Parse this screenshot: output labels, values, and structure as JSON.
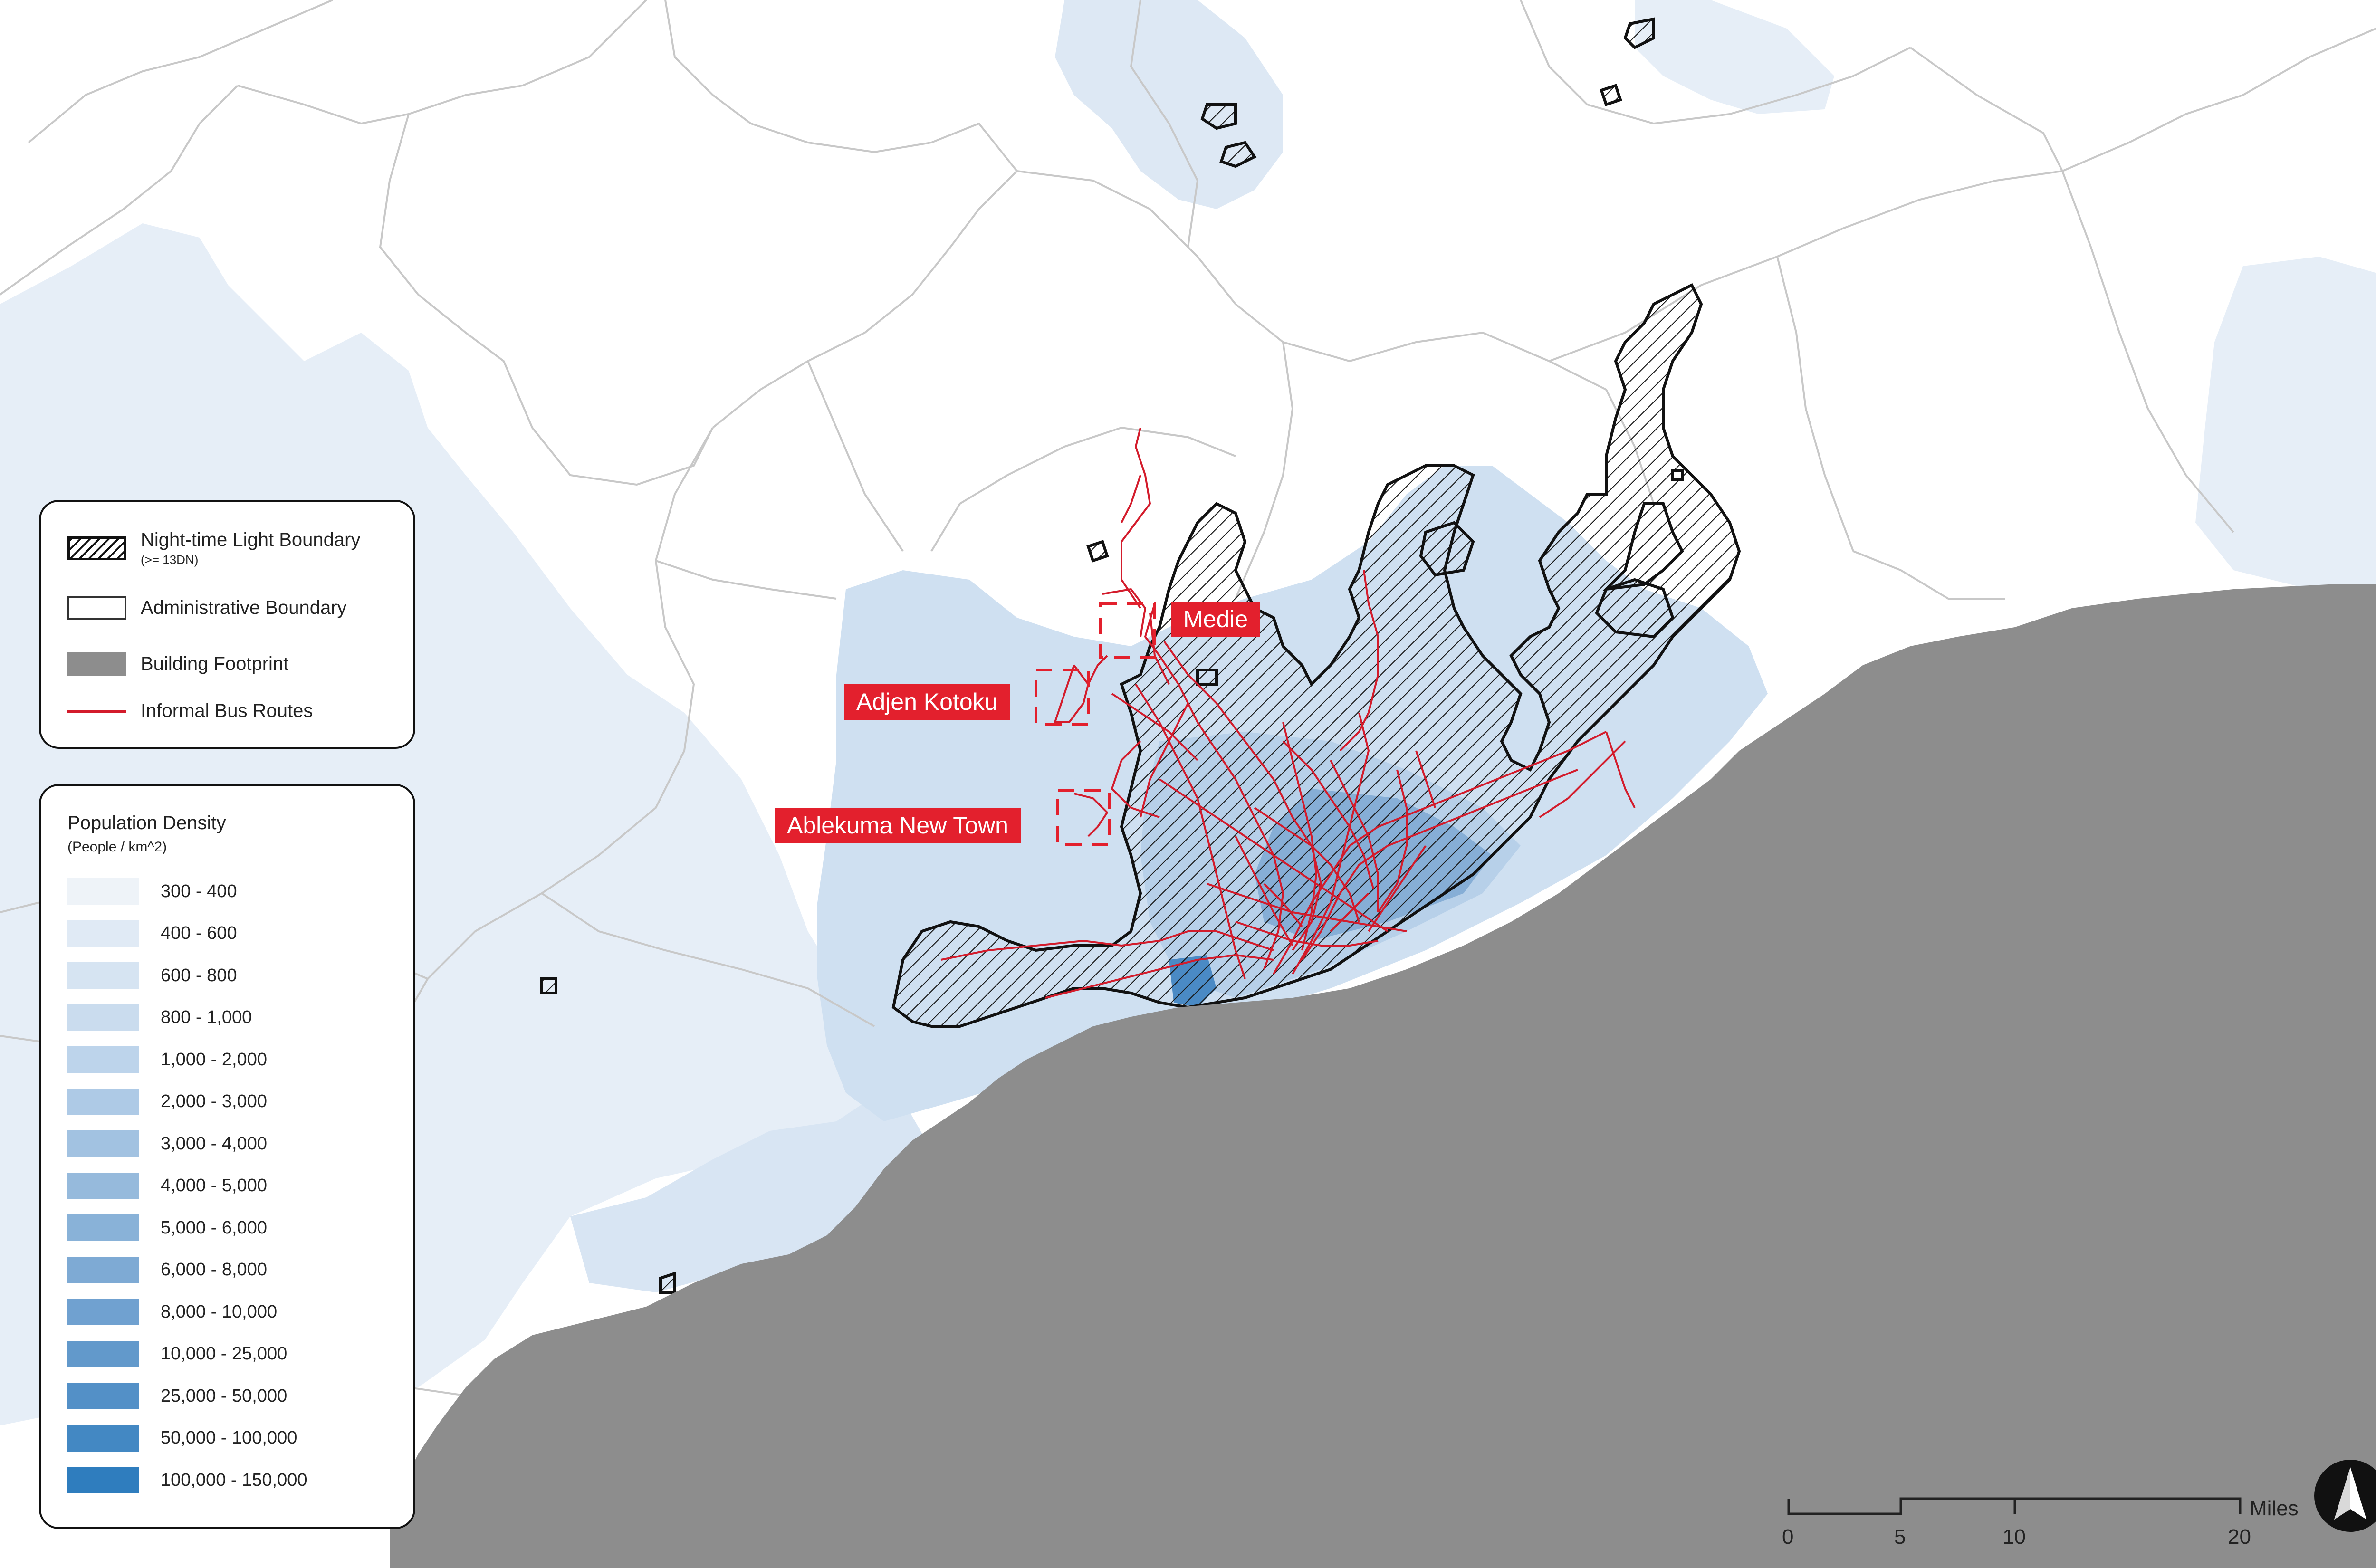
{
  "map": {
    "colors": {
      "land": "#ffffff",
      "sea": "#8d8d8d",
      "admin_line": "#c8c8c8",
      "bus_route": "#d31b2b",
      "label_bg": "#e3202d",
      "label_text": "#ffffff"
    },
    "place_labels": [
      {
        "id": "medie",
        "text": "Medie"
      },
      {
        "id": "adjen-kotoku",
        "text": "Adjen Kotoku"
      },
      {
        "id": "ablekuma-new-town",
        "text": "Ablekuma New Town"
      }
    ]
  },
  "legend": {
    "items": [
      {
        "symbol": "hatch",
        "label": "Night-time Light Boundary",
        "sublabel": "(>= 13DN)"
      },
      {
        "symbol": "admin",
        "label": "Administrative Boundary",
        "sublabel": ""
      },
      {
        "symbol": "building",
        "label": "Building Footprint",
        "sublabel": ""
      },
      {
        "symbol": "bus",
        "label": "Informal Bus Routes",
        "sublabel": ""
      }
    ]
  },
  "density_legend": {
    "title": "Population Density",
    "unit": "(People / km^2)",
    "classes": [
      {
        "label": "300 - 400",
        "color": "#eef3f8"
      },
      {
        "label": "400 - 600",
        "color": "#e0eaf5"
      },
      {
        "label": "600 - 800",
        "color": "#d6e4f2"
      },
      {
        "label": "800 - 1,000",
        "color": "#cadcee"
      },
      {
        "label": "1,000 - 2,000",
        "color": "#bdd4eb"
      },
      {
        "label": "2,000 - 3,000",
        "color": "#aecae6"
      },
      {
        "label": "3,000 - 4,000",
        "color": "#a2c2e1"
      },
      {
        "label": "4,000 - 5,000",
        "color": "#96badc"
      },
      {
        "label": "5,000 - 6,000",
        "color": "#89b2d8"
      },
      {
        "label": "6,000 - 8,000",
        "color": "#7eaad4"
      },
      {
        "label": "8,000 - 10,000",
        "color": "#70a1d0"
      },
      {
        "label": "10,000 - 25,000",
        "color": "#6299cb"
      },
      {
        "label": "25,000 - 50,000",
        "color": "#5390c7"
      },
      {
        "label": "50,000 - 100,000",
        "color": "#4388c3"
      },
      {
        "label": "100,000 - 150,000",
        "color": "#2f7dbe"
      }
    ]
  },
  "scale_bar": {
    "ticks": [
      "0",
      "5",
      "10",
      "20"
    ],
    "unit": "Miles"
  },
  "north_arrow": {
    "icon": "north-arrow-icon"
  }
}
